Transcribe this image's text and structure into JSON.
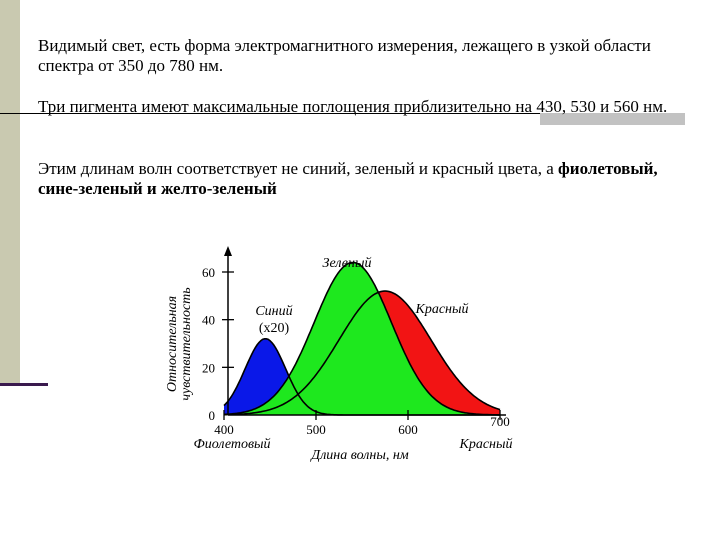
{
  "slide": {
    "paragraph1": "Видимый свет, есть форма электромагнитного измерения, лежащего в узкой области спектра от 350 до 780 нм.",
    "paragraph2": "Три пигмента имеют максимальные поглощения приблизительно на 430, 530 и 560 нм.",
    "paragraph3_plain": "Этим длинам волн соответствует не синий, зеленый и красный цвета, а ",
    "paragraph3_bold": "фиолетовый, сине-зеленый и желто-зеленый"
  },
  "colors": {
    "blue": "#0a18e8",
    "green": "#1ee81e",
    "red": "#f21414",
    "deco_left": "#c9c9b0",
    "deco_line": "#3a1a4e"
  },
  "chart_data": {
    "type": "area",
    "ylabel": "Относительная чувствительность",
    "xlabel": "Длина волны, нм",
    "x_ticks": [
      "400",
      "500",
      "600",
      "700"
    ],
    "y_ticks": [
      "0",
      "20",
      "40",
      "60"
    ],
    "xlim": [
      400,
      700
    ],
    "ylim": [
      0,
      60
    ],
    "x_end_labels": {
      "left": "Фиолетовый",
      "right": "Красный"
    },
    "series": [
      {
        "name": "Синий",
        "label_lines": [
          "Синий",
          "(x20)"
        ],
        "peak_x": 445,
        "peak_y": 32,
        "sigma": 22,
        "color": "blue"
      },
      {
        "name": "Зеленый",
        "label_lines": [
          "Зеленый"
        ],
        "peak_x": 540,
        "peak_y": 64,
        "sigma": 42,
        "color": "green"
      },
      {
        "name": "Красный",
        "label_lines": [
          "Красный"
        ],
        "peak_x": 575,
        "peak_y": 52,
        "sigma": 50,
        "color": "red"
      }
    ]
  }
}
